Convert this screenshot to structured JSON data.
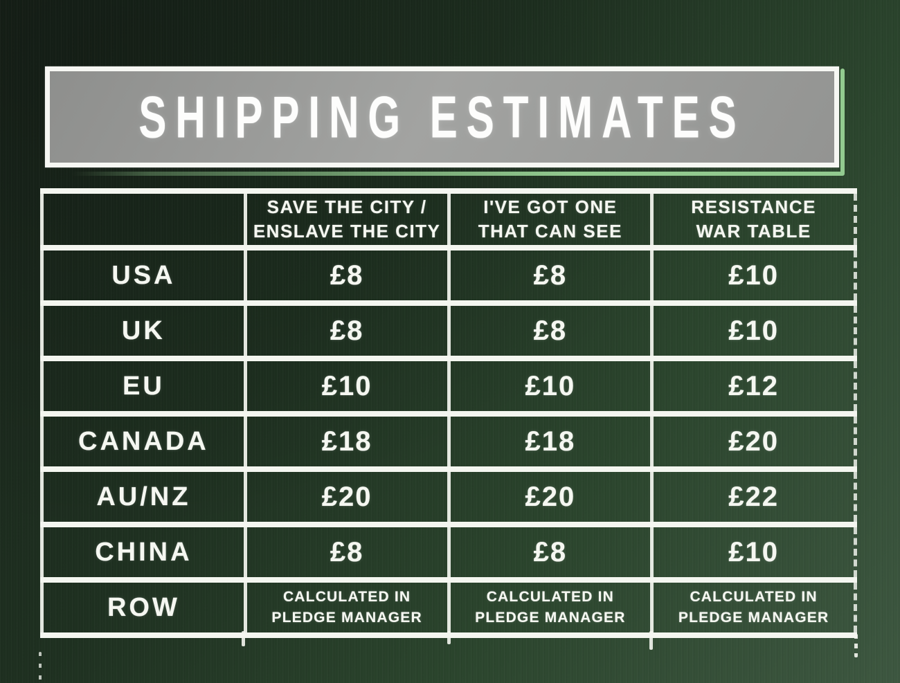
{
  "title": "SHIPPING ESTIMATES",
  "colors": {
    "chalk_white": "#f5f7f1",
    "accent_green": "#92ca8f",
    "banner_gray": "#9a9b99",
    "board_dark_green": "#1e3020",
    "board_light_green": "#3d5740"
  },
  "chart_data": {
    "type": "table",
    "title": "SHIPPING ESTIMATES",
    "columns": [
      "",
      "SAVE THE CITY /\nENSLAVE THE CITY",
      "I'VE GOT ONE\nTHAT CAN SEE",
      "RESISTANCE\nWAR TABLE"
    ],
    "rows": [
      {
        "region": "USA",
        "values": [
          "£8",
          "£8",
          "£10"
        ]
      },
      {
        "region": "UK",
        "values": [
          "£8",
          "£8",
          "£10"
        ]
      },
      {
        "region": "EU",
        "values": [
          "£10",
          "£10",
          "£12"
        ]
      },
      {
        "region": "CANADA",
        "values": [
          "£18",
          "£18",
          "£20"
        ]
      },
      {
        "region": "AU/NZ",
        "values": [
          "£20",
          "£20",
          "£22"
        ]
      },
      {
        "region": "CHINA",
        "values": [
          "£8",
          "£8",
          "£10"
        ]
      },
      {
        "region": "ROW",
        "values": [
          "CALCULATED IN\nPLEDGE MANAGER",
          "CALCULATED IN\nPLEDGE MANAGER",
          "CALCULATED IN\nPLEDGE MANAGER"
        ]
      }
    ]
  }
}
